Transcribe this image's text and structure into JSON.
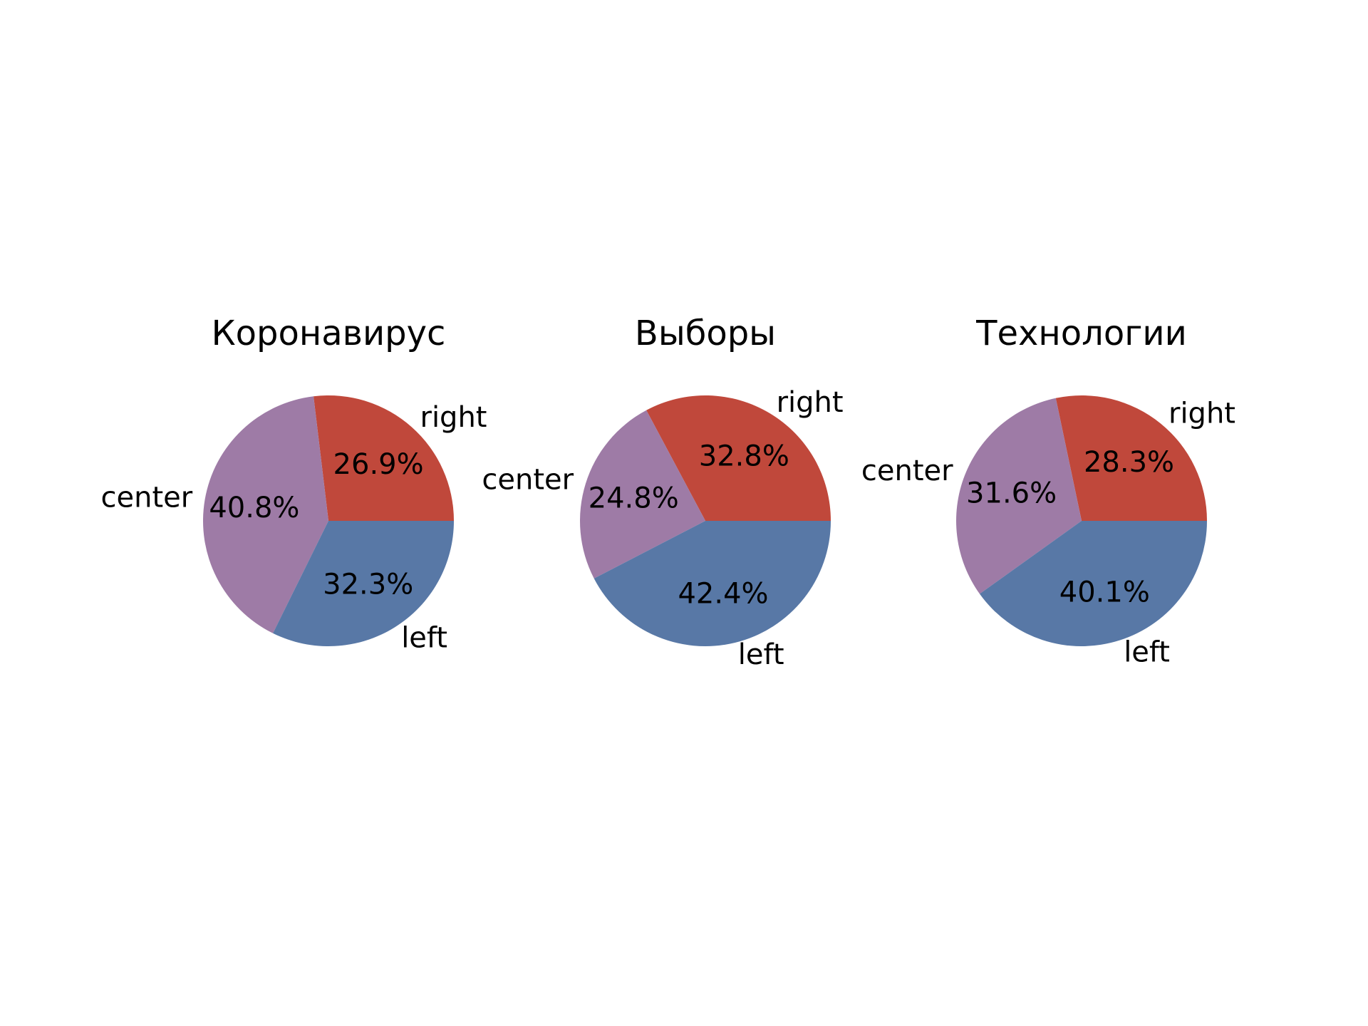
{
  "chart_data": [
    {
      "type": "pie",
      "title": "Коронавирус",
      "slices": [
        {
          "label": "right",
          "value": 26.9,
          "pct_text": "26.9%",
          "color": "#c0483b"
        },
        {
          "label": "center",
          "value": 40.8,
          "pct_text": "40.8%",
          "color": "#9e7ba6"
        },
        {
          "label": "left",
          "value": 32.3,
          "pct_text": "32.3%",
          "color": "#5878a6"
        }
      ]
    },
    {
      "type": "pie",
      "title": "Выборы",
      "slices": [
        {
          "label": "right",
          "value": 32.8,
          "pct_text": "32.8%",
          "color": "#c0483b"
        },
        {
          "label": "center",
          "value": 24.8,
          "pct_text": "24.8%",
          "color": "#9e7ba6"
        },
        {
          "label": "left",
          "value": 42.4,
          "pct_text": "42.4%",
          "color": "#5878a6"
        }
      ]
    },
    {
      "type": "pie",
      "title": "Технологии",
      "slices": [
        {
          "label": "right",
          "value": 28.3,
          "pct_text": "28.3%",
          "color": "#c0483b"
        },
        {
          "label": "center",
          "value": 31.6,
          "pct_text": "31.6%",
          "color": "#9e7ba6"
        },
        {
          "label": "left",
          "value": 40.1,
          "pct_text": "40.1%",
          "color": "#5878a6"
        }
      ]
    }
  ]
}
